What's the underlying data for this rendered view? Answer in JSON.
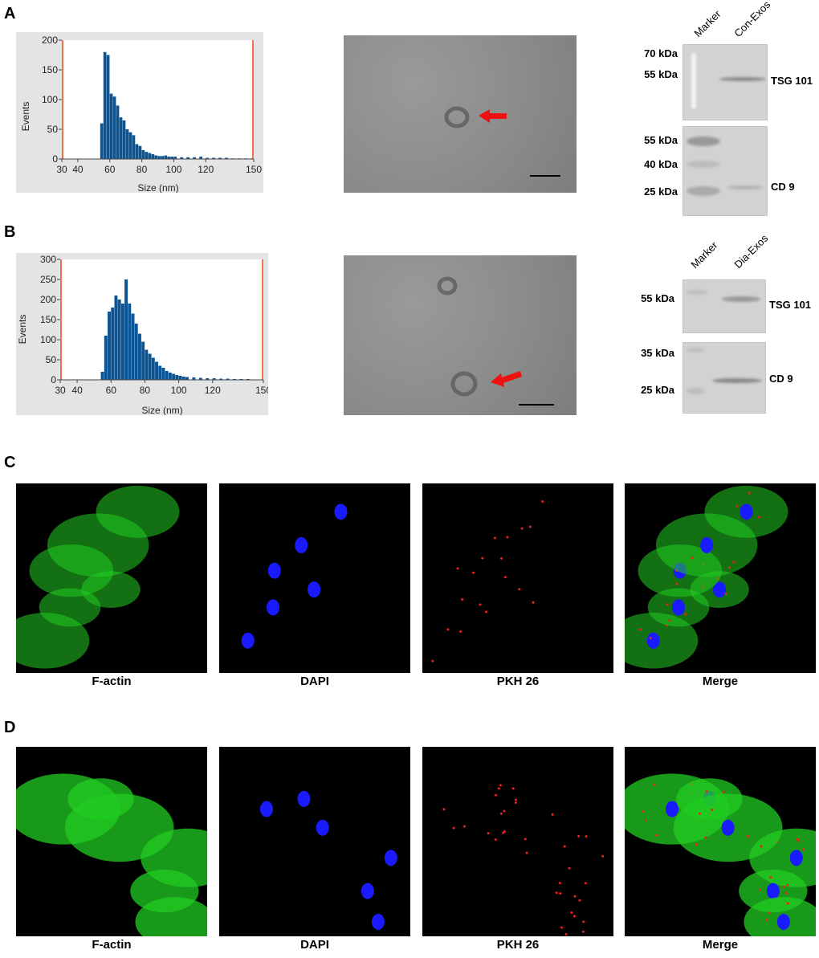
{
  "panels": {
    "a": "A",
    "b": "B",
    "c": "C",
    "d": "D"
  },
  "chart_data": [
    {
      "type": "bar",
      "panel": "A",
      "xlabel": "Size (nm)",
      "ylabel": "Events",
      "xlim": [
        30,
        150
      ],
      "ylim": [
        0,
        200
      ],
      "xticks": [
        "30",
        "40",
        "60",
        "80",
        "100",
        "120",
        "150"
      ],
      "yticks": [
        "0",
        "50",
        "100",
        "150",
        "200"
      ],
      "x": [
        52,
        54,
        56,
        58,
        60,
        62,
        64,
        66,
        68,
        70,
        72,
        74,
        76,
        78,
        80,
        82,
        84,
        86,
        88,
        90,
        92,
        94,
        96,
        98,
        100,
        104,
        108,
        112,
        116,
        120,
        124,
        128,
        132,
        136,
        140,
        144,
        148
      ],
      "values": [
        0,
        60,
        180,
        175,
        110,
        105,
        90,
        70,
        65,
        50,
        45,
        40,
        25,
        22,
        15,
        12,
        10,
        8,
        6,
        5,
        5,
        6,
        4,
        4,
        4,
        3,
        3,
        3,
        4,
        2,
        2,
        2,
        2,
        1,
        1,
        1,
        1
      ]
    },
    {
      "type": "bar",
      "panel": "B",
      "xlabel": "Size (nm)",
      "ylabel": "Events",
      "xlim": [
        30,
        150
      ],
      "ylim": [
        0,
        300
      ],
      "xticks": [
        "30",
        "40",
        "60",
        "80",
        "100",
        "120",
        "150"
      ],
      "yticks": [
        "0",
        "50",
        "100",
        "150",
        "200",
        "250",
        "300"
      ],
      "x": [
        54,
        56,
        58,
        60,
        62,
        64,
        66,
        68,
        70,
        72,
        74,
        76,
        78,
        80,
        82,
        84,
        86,
        88,
        90,
        92,
        94,
        96,
        98,
        100,
        102,
        104,
        108,
        112,
        116,
        120,
        124,
        128,
        132,
        136,
        140,
        144,
        148
      ],
      "values": [
        20,
        110,
        170,
        180,
        210,
        200,
        190,
        250,
        190,
        165,
        140,
        115,
        95,
        75,
        65,
        55,
        45,
        35,
        30,
        22,
        18,
        15,
        12,
        10,
        8,
        7,
        6,
        5,
        4,
        4,
        3,
        3,
        2,
        2,
        2,
        1,
        1
      ]
    }
  ],
  "western_a": {
    "lanes": [
      "Marker",
      "Con-Exos"
    ],
    "top": {
      "markers": [
        "70 kDa",
        "55 kDa"
      ],
      "protein": "TSG 101"
    },
    "bottom": {
      "markers": [
        "55 kDa",
        "40 kDa",
        "25 kDa"
      ],
      "protein": "CD 9"
    }
  },
  "western_b": {
    "lanes": [
      "Marker",
      "Dia-Exos"
    ],
    "top": {
      "markers": [
        "55 kDa"
      ],
      "protein": "TSG 101"
    },
    "bottom": {
      "markers": [
        "35 kDa",
        "25 kDa"
      ],
      "protein": "CD 9"
    }
  },
  "microscopy": {
    "labels": [
      "F-actin",
      "DAPI",
      "PKH 26",
      "Merge"
    ]
  },
  "colors": {
    "bar": "#0b5596",
    "marker_line": "#f07050",
    "arrow": "#ee1111",
    "actin": "#22cc22",
    "dapi": "#1a1aff",
    "pkh": "#ee2020"
  }
}
